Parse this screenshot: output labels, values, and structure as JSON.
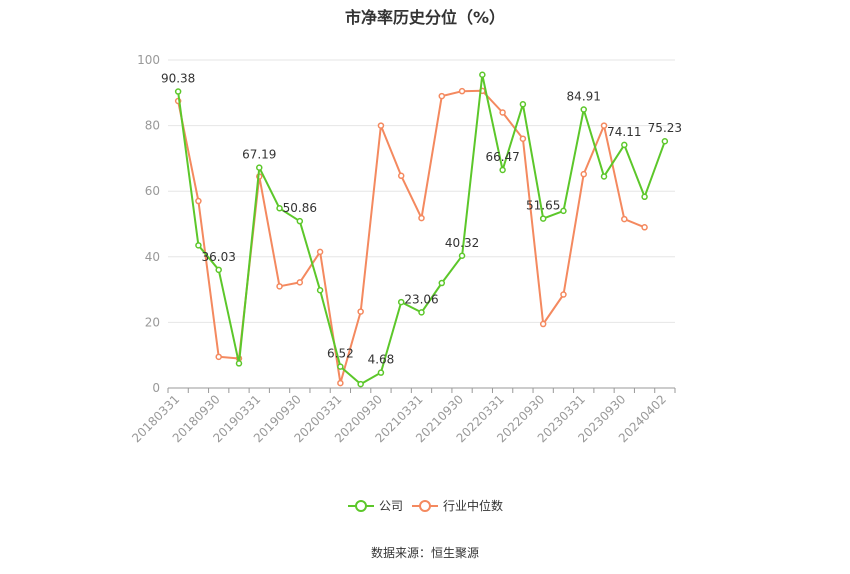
{
  "chart_data": {
    "type": "line",
    "title": "市净率历史分位（%）",
    "source": "数据来源：恒生聚源",
    "ylim": [
      0,
      100
    ],
    "yticks": [
      "0",
      "20",
      "40",
      "60",
      "80",
      "100"
    ],
    "x_labels": [
      "20180331",
      "20180930",
      "20190331",
      "20190930",
      "20200331",
      "20200930",
      "20210331",
      "20210930",
      "20220331",
      "20220930",
      "20230331",
      "20230930",
      "20240402"
    ],
    "grid": true,
    "legend_position": "bottom",
    "series": [
      {
        "name": "公司",
        "color": "#5cc72a",
        "values": [
          90.38,
          43.5,
          36.03,
          7.5,
          67.19,
          54.8,
          50.86,
          29.8,
          6.52,
          1.2,
          4.68,
          26.2,
          23.06,
          32.0,
          40.32,
          95.5,
          66.47,
          86.5,
          51.65,
          54.0,
          84.91,
          64.5,
          74.11,
          58.3,
          75.23
        ],
        "point_labels": [
          "90.38",
          "",
          "36.03",
          "",
          "67.19",
          "",
          "50.86",
          "",
          "6.52",
          "",
          "4.68",
          "",
          "23.06",
          "",
          "40.32",
          "",
          "66.47",
          "",
          "51.65",
          "",
          "84.91",
          "",
          "74.11",
          "",
          "75.23"
        ]
      },
      {
        "name": "行业中位数",
        "color": "#f4895f",
        "values": [
          87.5,
          57.0,
          9.5,
          9.0,
          64.5,
          31.0,
          32.2,
          41.5,
          1.5,
          23.3,
          80.0,
          64.7,
          51.8,
          89.0,
          90.5,
          90.6,
          84.0,
          76.0,
          19.5,
          28.5,
          65.2,
          80.0,
          51.5,
          49.0,
          null
        ]
      }
    ]
  }
}
